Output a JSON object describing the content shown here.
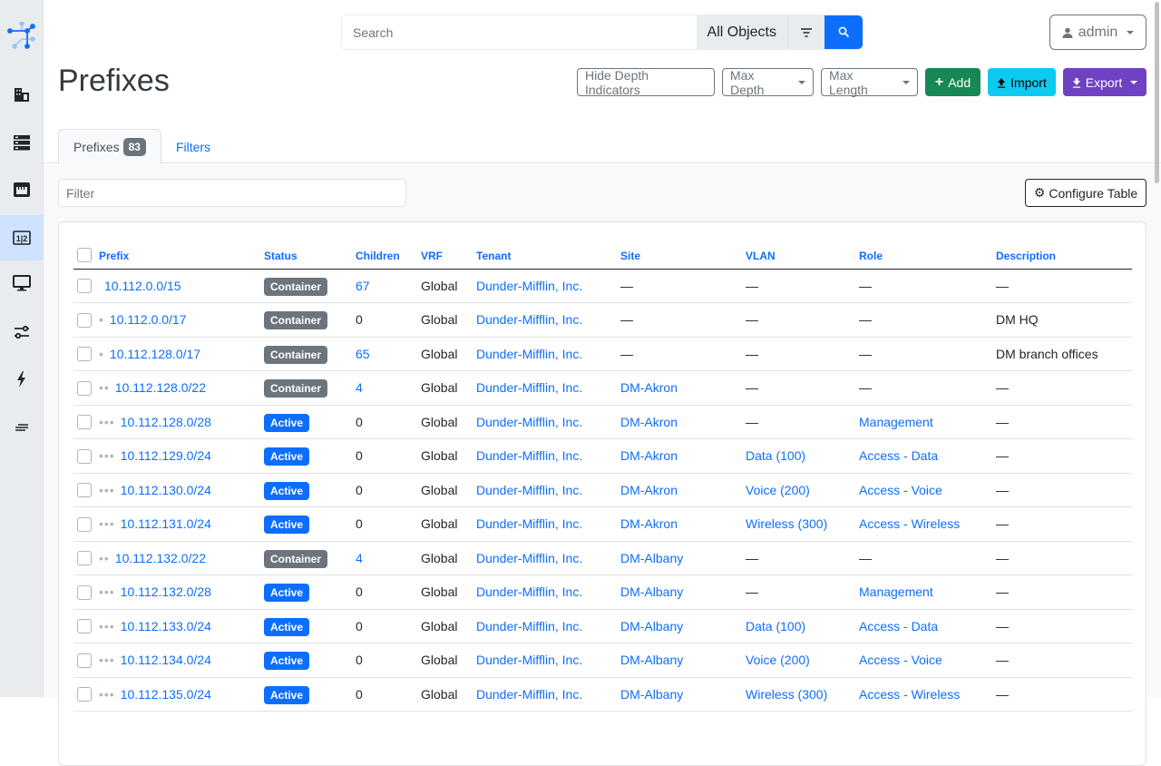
{
  "search": {
    "placeholder": "Search",
    "scope": "All Objects"
  },
  "user": {
    "name": "admin"
  },
  "page": {
    "title": "Prefixes"
  },
  "actions": {
    "hide_depth": "Hide Depth Indicators",
    "max_depth": "Max Depth",
    "max_length": "Max Length",
    "add": "Add",
    "import": "Import",
    "export": "Export"
  },
  "colors": {
    "primary": "#0d6efd",
    "add": "#198754",
    "import": "#0dcaf0",
    "export": "#6f42c1",
    "container": "#6c757d",
    "active": "#0d6efd"
  },
  "tabs": [
    {
      "label": "Prefixes",
      "count": "83"
    },
    {
      "label": "Filters"
    }
  ],
  "filter": {
    "placeholder": "Filter"
  },
  "configure": "Configure Table",
  "table": {
    "columns": [
      "Prefix",
      "Status",
      "Children",
      "VRF",
      "Tenant",
      "Site",
      "VLAN",
      "Role",
      "Description"
    ],
    "rows": [
      {
        "depth": 0,
        "prefix": "10.112.0.0/15",
        "status": "Container",
        "children": "67",
        "vrf": "Global",
        "tenant": "Dunder-Mifflin, Inc.",
        "site": "—",
        "vlan": "—",
        "role": "—",
        "description": "—"
      },
      {
        "depth": 1,
        "prefix": "10.112.0.0/17",
        "status": "Container",
        "children": "0",
        "vrf": "Global",
        "tenant": "Dunder-Mifflin, Inc.",
        "site": "—",
        "vlan": "—",
        "role": "—",
        "description": "DM HQ"
      },
      {
        "depth": 1,
        "prefix": "10.112.128.0/17",
        "status": "Container",
        "children": "65",
        "vrf": "Global",
        "tenant": "Dunder-Mifflin, Inc.",
        "site": "—",
        "vlan": "—",
        "role": "—",
        "description": "DM branch offices"
      },
      {
        "depth": 2,
        "prefix": "10.112.128.0/22",
        "status": "Container",
        "children": "4",
        "vrf": "Global",
        "tenant": "Dunder-Mifflin, Inc.",
        "site": "DM-Akron",
        "vlan": "—",
        "role": "—",
        "description": "—"
      },
      {
        "depth": 3,
        "prefix": "10.112.128.0/28",
        "status": "Active",
        "children": "0",
        "vrf": "Global",
        "tenant": "Dunder-Mifflin, Inc.",
        "site": "DM-Akron",
        "vlan": "—",
        "role": "Management",
        "description": "—"
      },
      {
        "depth": 3,
        "prefix": "10.112.129.0/24",
        "status": "Active",
        "children": "0",
        "vrf": "Global",
        "tenant": "Dunder-Mifflin, Inc.",
        "site": "DM-Akron",
        "vlan": "Data (100)",
        "role": "Access - Data",
        "description": "—"
      },
      {
        "depth": 3,
        "prefix": "10.112.130.0/24",
        "status": "Active",
        "children": "0",
        "vrf": "Global",
        "tenant": "Dunder-Mifflin, Inc.",
        "site": "DM-Akron",
        "vlan": "Voice (200)",
        "role": "Access - Voice",
        "description": "—"
      },
      {
        "depth": 3,
        "prefix": "10.112.131.0/24",
        "status": "Active",
        "children": "0",
        "vrf": "Global",
        "tenant": "Dunder-Mifflin, Inc.",
        "site": "DM-Akron",
        "vlan": "Wireless (300)",
        "role": "Access - Wireless",
        "description": "—"
      },
      {
        "depth": 2,
        "prefix": "10.112.132.0/22",
        "status": "Container",
        "children": "4",
        "vrf": "Global",
        "tenant": "Dunder-Mifflin, Inc.",
        "site": "DM-Albany",
        "vlan": "—",
        "role": "—",
        "description": "—"
      },
      {
        "depth": 3,
        "prefix": "10.112.132.0/28",
        "status": "Active",
        "children": "0",
        "vrf": "Global",
        "tenant": "Dunder-Mifflin, Inc.",
        "site": "DM-Albany",
        "vlan": "—",
        "role": "Management",
        "description": "—"
      },
      {
        "depth": 3,
        "prefix": "10.112.133.0/24",
        "status": "Active",
        "children": "0",
        "vrf": "Global",
        "tenant": "Dunder-Mifflin, Inc.",
        "site": "DM-Albany",
        "vlan": "Data (100)",
        "role": "Access - Data",
        "description": "—"
      },
      {
        "depth": 3,
        "prefix": "10.112.134.0/24",
        "status": "Active",
        "children": "0",
        "vrf": "Global",
        "tenant": "Dunder-Mifflin, Inc.",
        "site": "DM-Albany",
        "vlan": "Voice (200)",
        "role": "Access - Voice",
        "description": "—"
      },
      {
        "depth": 3,
        "prefix": "10.112.135.0/24",
        "status": "Active",
        "children": "0",
        "vrf": "Global",
        "tenant": "Dunder-Mifflin, Inc.",
        "site": "DM-Albany",
        "vlan": "Wireless (300)",
        "role": "Access - Wireless",
        "description": "—"
      }
    ]
  }
}
